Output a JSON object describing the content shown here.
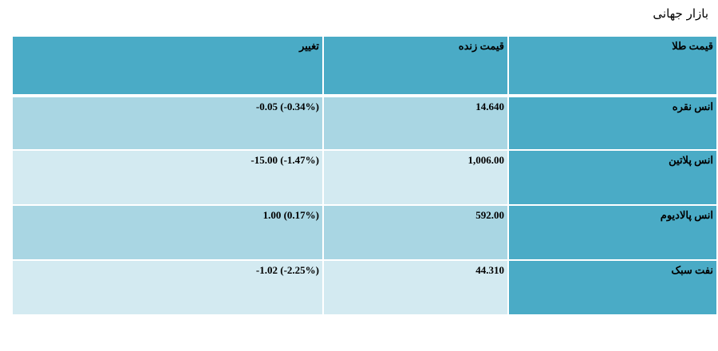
{
  "page": {
    "title": "بازار جهانی"
  },
  "table": {
    "headers": {
      "name": "قیمت طلا",
      "price": "قیمت زنده",
      "change": "تغییر"
    },
    "rows": [
      {
        "name": "انس نقره",
        "price": "14.640",
        "change": "-0.05 (-0.34%)"
      },
      {
        "name": "انس پلاتین",
        "price": "1,006.00",
        "change": "-15.00 (-1.47%)"
      },
      {
        "name": "انس پالادیوم",
        "price": "592.00",
        "change": "1.00 (0.17%)"
      },
      {
        "name": "نفت سبک",
        "price": "44.310",
        "change": "-1.02 (-2.25%)"
      }
    ]
  },
  "colors": {
    "header_bg": "#4aabc6",
    "row_dark": "#a9d6e3",
    "row_light": "#d3eaf1"
  }
}
